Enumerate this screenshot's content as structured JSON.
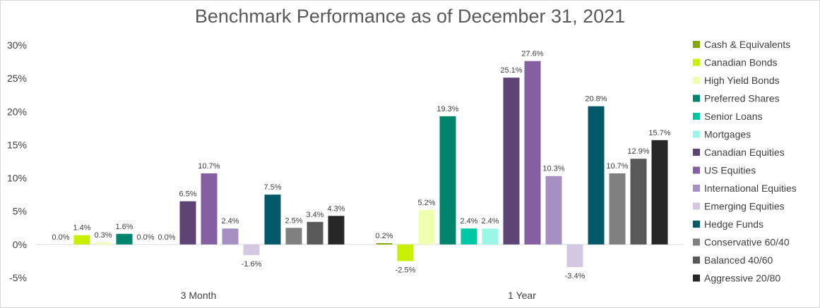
{
  "chart_data": {
    "type": "bar",
    "title": "Benchmark Performance as of December 31, 2021",
    "xlabel": "",
    "ylabel": "",
    "ylim": [
      -5,
      30
    ],
    "yticks": [
      "-5%",
      "0%",
      "5%",
      "10%",
      "15%",
      "20%",
      "25%",
      "30%"
    ],
    "categories": [
      "3 Month",
      "1 Year"
    ],
    "legend_position": "right",
    "series": [
      {
        "name": "Cash & Equivalents",
        "color": "#7fa900",
        "values": [
          0.0,
          0.2
        ],
        "labels": [
          "0.0%",
          "0.2%"
        ]
      },
      {
        "name": "Canadian Bonds",
        "color": "#c8f000",
        "values": [
          1.4,
          -2.5
        ],
        "labels": [
          "1.4%",
          "-2.5%"
        ]
      },
      {
        "name": "High Yield Bonds",
        "color": "#eeffb0",
        "values": [
          0.3,
          5.2
        ],
        "labels": [
          "0.3%",
          "5.2%"
        ]
      },
      {
        "name": "Preferred Shares",
        "color": "#00856c",
        "values": [
          1.6,
          19.3
        ],
        "labels": [
          "1.6%",
          "19.3%"
        ]
      },
      {
        "name": "Senior Loans",
        "color": "#00c7a4",
        "values": [
          0.0,
          2.4
        ],
        "labels": [
          "0.0%",
          "2.4%"
        ]
      },
      {
        "name": "Mortgages",
        "color": "#9af7e8",
        "values": [
          0.0,
          2.4
        ],
        "labels": [
          "0.0%",
          "2.4%"
        ]
      },
      {
        "name": "Canadian Equities",
        "color": "#5e4474",
        "values": [
          6.5,
          25.1
        ],
        "labels": [
          "6.5%",
          "25.1%"
        ]
      },
      {
        "name": "US Equities",
        "color": "#8460a3",
        "values": [
          10.7,
          27.6
        ],
        "labels": [
          "10.7%",
          "27.6%"
        ]
      },
      {
        "name": "International Equities",
        "color": "#a68fc1",
        "values": [
          2.4,
          10.3
        ],
        "labels": [
          "2.4%",
          "10.3%"
        ]
      },
      {
        "name": "Emerging Equities",
        "color": "#d5c8e3",
        "values": [
          -1.6,
          -3.4
        ],
        "labels": [
          "-1.6%",
          "-3.4%"
        ]
      },
      {
        "name": "Hedge Funds",
        "color": "#005868",
        "values": [
          7.5,
          20.8
        ],
        "labels": [
          "7.5%",
          "20.8%"
        ]
      },
      {
        "name": "Conservative 60/40",
        "color": "#808080",
        "values": [
          2.5,
          10.7
        ],
        "labels": [
          "2.5%",
          "10.7%"
        ]
      },
      {
        "name": "Balanced 40/60",
        "color": "#595959",
        "values": [
          3.4,
          12.9
        ],
        "labels": [
          "3.4%",
          "12.9%"
        ]
      },
      {
        "name": "Aggressive 20/80",
        "color": "#262626",
        "values": [
          4.3,
          15.7
        ],
        "labels": [
          "4.3%",
          "15.7%"
        ]
      }
    ]
  }
}
